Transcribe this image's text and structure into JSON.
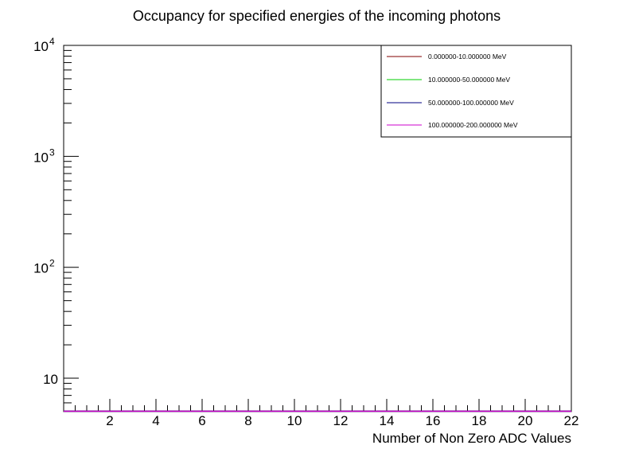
{
  "chart_data": {
    "type": "line",
    "title": "Occupancy for specified energies of the incoming photons",
    "xlabel": "Number of Non Zero ADC Values",
    "ylabel": "",
    "xlim": [
      0,
      22
    ],
    "ylim": [
      5,
      10000
    ],
    "y_scale": "log",
    "grid": false,
    "legend_position": "top-right",
    "x_ticks": [
      {
        "value": 2,
        "label": "2"
      },
      {
        "value": 4,
        "label": "4"
      },
      {
        "value": 6,
        "label": "6"
      },
      {
        "value": 8,
        "label": "8"
      },
      {
        "value": 10,
        "label": "10"
      },
      {
        "value": 12,
        "label": "12"
      },
      {
        "value": 14,
        "label": "14"
      },
      {
        "value": 16,
        "label": "16"
      },
      {
        "value": 18,
        "label": "18"
      },
      {
        "value": 20,
        "label": "20"
      },
      {
        "value": 22,
        "label": "22"
      }
    ],
    "y_ticks": [
      {
        "value": 10,
        "base": "10",
        "exp": ""
      },
      {
        "value": 100,
        "base": "10",
        "exp": "2"
      },
      {
        "value": 1000,
        "base": "10",
        "exp": "3"
      },
      {
        "value": 10000,
        "base": "10",
        "exp": "4"
      }
    ],
    "series": [
      {
        "name": "0.000000-10.000000 MeV",
        "color": "#800000",
        "x": [
          0,
          22
        ],
        "y": [
          5,
          5
        ]
      },
      {
        "name": "10.000000-50.000000 MeV",
        "color": "#00cc00",
        "x": [
          0,
          22
        ],
        "y": [
          5,
          5
        ]
      },
      {
        "name": "50.000000-100.000000 MeV",
        "color": "#000080",
        "x": [
          0,
          22
        ],
        "y": [
          5,
          5
        ]
      },
      {
        "name": "100.000000-200.000000 MeV",
        "color": "#cc00cc",
        "x": [
          0,
          22
        ],
        "y": [
          5,
          5
        ]
      }
    ]
  }
}
